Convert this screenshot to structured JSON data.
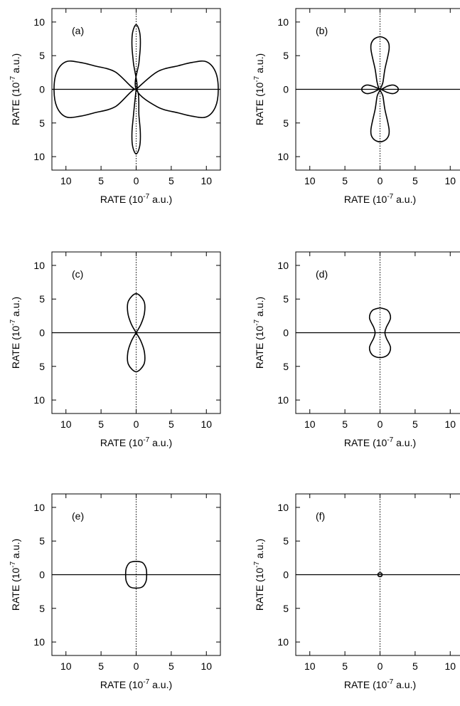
{
  "chart_data": [
    {
      "type": "polar-line",
      "panel_label": "(a)",
      "series": [
        {
          "values": [
            [
              0,
              0
            ],
            [
              3,
              2.6
            ],
            [
              6,
              3.5
            ],
            [
              8,
              4
            ],
            [
              10,
              4.1
            ],
            [
              11.3,
              2.6
            ],
            [
              11.7,
              0
            ],
            [
              11.3,
              -2.6
            ],
            [
              10,
              -4.1
            ],
            [
              8,
              -4
            ],
            [
              6,
              -3.5
            ],
            [
              3,
              -2.6
            ],
            [
              0,
              0
            ],
            [
              0.4,
              4
            ],
            [
              0.6,
              6.5
            ],
            [
              0.5,
              8.5
            ],
            [
              0,
              9.6
            ],
            [
              -0.5,
              8.5
            ],
            [
              -0.6,
              6.5
            ],
            [
              -0.4,
              4
            ],
            [
              0,
              0
            ],
            [
              -3,
              2.6
            ],
            [
              -6,
              3.5
            ],
            [
              -8,
              4
            ],
            [
              -10,
              4.1
            ],
            [
              -11.3,
              2.6
            ],
            [
              -11.7,
              0
            ],
            [
              -11.3,
              -2.6
            ],
            [
              -10,
              -4.1
            ],
            [
              -8,
              -4
            ],
            [
              -6,
              -3.5
            ],
            [
              -3,
              -2.6
            ],
            [
              0,
              0
            ],
            [
              0.4,
              -4
            ],
            [
              0.6,
              -6.5
            ],
            [
              0.5,
              -8.5
            ],
            [
              0,
              -9.6
            ],
            [
              -0.5,
              -8.5
            ],
            [
              -0.6,
              -6.5
            ],
            [
              -0.4,
              -4
            ],
            [
              0,
              0
            ]
          ]
        }
      ],
      "xlabel": "RATE (10",
      "ylabel": "RATE (10",
      "label_exponent": "-7",
      "label_unit": " a.u.)",
      "xticks": [
        "10",
        "5",
        "0",
        "5",
        "10"
      ],
      "yticks": [
        "10",
        "5",
        "0",
        "5",
        "10"
      ],
      "xlim": [
        -12,
        12
      ],
      "ylim": [
        -12,
        12
      ]
    },
    {
      "type": "polar-line",
      "panel_label": "(b)",
      "series": [
        {
          "values": [
            [
              0,
              0
            ],
            [
              0.4,
              1
            ],
            [
              0.7,
              3
            ],
            [
              1.3,
              6
            ],
            [
              1,
              7.3
            ],
            [
              0,
              7.8
            ],
            [
              -1,
              7.3
            ],
            [
              -1.3,
              6
            ],
            [
              -0.7,
              3
            ],
            [
              -0.4,
              1
            ],
            [
              0,
              0
            ],
            [
              1,
              0.45
            ],
            [
              1.8,
              0.65
            ],
            [
              2.4,
              0.4
            ],
            [
              2.6,
              0
            ],
            [
              2.4,
              -0.4
            ],
            [
              1.8,
              -0.65
            ],
            [
              1,
              -0.45
            ],
            [
              0,
              0
            ],
            [
              0.4,
              -1
            ],
            [
              0.7,
              -3
            ],
            [
              1.3,
              -6
            ],
            [
              1,
              -7.3
            ],
            [
              0,
              -7.8
            ],
            [
              -1,
              -7.3
            ],
            [
              -1.3,
              -6
            ],
            [
              -0.7,
              -3
            ],
            [
              -0.4,
              -1
            ],
            [
              0,
              0
            ],
            [
              -1,
              -0.45
            ],
            [
              -1.8,
              -0.65
            ],
            [
              -2.4,
              -0.4
            ],
            [
              -2.6,
              0
            ],
            [
              -2.4,
              0.4
            ],
            [
              -1.8,
              0.65
            ],
            [
              -1,
              0.45
            ],
            [
              0,
              0
            ]
          ]
        }
      ],
      "xlabel": "RATE (10",
      "ylabel": "RATE (10",
      "label_exponent": "-7",
      "label_unit": " a.u.)",
      "xticks": [
        "10",
        "5",
        "0",
        "5",
        "10"
      ],
      "yticks": [
        "10",
        "5",
        "0",
        "5",
        "10"
      ],
      "xlim": [
        -12,
        12
      ],
      "ylim": [
        -12,
        12
      ]
    },
    {
      "type": "polar-line",
      "panel_label": "(c)",
      "series": [
        {
          "values": [
            [
              0,
              0
            ],
            [
              0.7,
              1.3
            ],
            [
              1.2,
              3
            ],
            [
              1.1,
              4.7
            ],
            [
              0,
              5.8
            ],
            [
              -1.1,
              4.7
            ],
            [
              -1.2,
              3
            ],
            [
              -0.7,
              1.3
            ],
            [
              0,
              0
            ],
            [
              0.7,
              -1.3
            ],
            [
              1.2,
              -3
            ],
            [
              1.1,
              -4.7
            ],
            [
              0,
              -5.8
            ],
            [
              -1.1,
              -4.7
            ],
            [
              -1.2,
              -3
            ],
            [
              -0.7,
              -1.3
            ],
            [
              0,
              0
            ]
          ]
        }
      ],
      "xlabel": "RATE (10",
      "ylabel": "RATE (10",
      "label_exponent": "-7",
      "label_unit": " a.u.)",
      "xticks": [
        "10",
        "5",
        "0",
        "5",
        "10"
      ],
      "yticks": [
        "10",
        "5",
        "0",
        "5",
        "10"
      ],
      "xlim": [
        -12,
        12
      ],
      "ylim": [
        -12,
        12
      ]
    },
    {
      "type": "polar-line",
      "panel_label": "(d)",
      "series": [
        {
          "values": [
            [
              0,
              3.7
            ],
            [
              1.1,
              3.3
            ],
            [
              1.5,
              2.2
            ],
            [
              0.9,
              0.8
            ],
            [
              0.7,
              0
            ],
            [
              0.9,
              -0.8
            ],
            [
              1.5,
              -2.2
            ],
            [
              1.1,
              -3.3
            ],
            [
              0,
              -3.7
            ],
            [
              -1.1,
              -3.3
            ],
            [
              -1.5,
              -2.2
            ],
            [
              -0.9,
              -0.8
            ],
            [
              -0.7,
              0
            ],
            [
              -0.9,
              0.8
            ],
            [
              -1.5,
              2.2
            ],
            [
              -1.1,
              3.3
            ],
            [
              0,
              3.7
            ]
          ]
        }
      ],
      "xlabel": "RATE (10",
      "ylabel": "RATE (10",
      "label_exponent": "-7",
      "label_unit": " a.u.)",
      "xticks": [
        "10",
        "5",
        "0",
        "5",
        "10"
      ],
      "yticks": [
        "10",
        "5",
        "0",
        "5",
        "10"
      ],
      "xlim": [
        -12,
        12
      ],
      "ylim": [
        -12,
        12
      ]
    },
    {
      "type": "polar-line",
      "panel_label": "(e)",
      "series": [
        {
          "values": [
            [
              0,
              2
            ],
            [
              0.9,
              1.8
            ],
            [
              1.4,
              1
            ],
            [
              1.5,
              0
            ],
            [
              1.4,
              -1
            ],
            [
              0.9,
              -1.8
            ],
            [
              0,
              -2
            ],
            [
              -0.9,
              -1.8
            ],
            [
              -1.4,
              -1
            ],
            [
              -1.5,
              0
            ],
            [
              -1.4,
              1
            ],
            [
              -0.9,
              1.8
            ],
            [
              0,
              2
            ]
          ]
        }
      ],
      "xlabel": "RATE (10",
      "ylabel": "RATE (10",
      "label_exponent": "-7",
      "label_unit": " a.u.)",
      "xticks": [
        "10",
        "5",
        "0",
        "5",
        "10"
      ],
      "yticks": [
        "10",
        "5",
        "0",
        "5",
        "10"
      ],
      "xlim": [
        -12,
        12
      ],
      "ylim": [
        -12,
        12
      ]
    },
    {
      "type": "polar-line",
      "panel_label": "(f)",
      "series": [
        {
          "values": [
            [
              0,
              0.3
            ],
            [
              0.21,
              0.21
            ],
            [
              0.3,
              0
            ],
            [
              0.21,
              -0.21
            ],
            [
              0,
              -0.3
            ],
            [
              -0.21,
              -0.21
            ],
            [
              -0.3,
              0
            ],
            [
              -0.21,
              0.21
            ],
            [
              0,
              0.3
            ]
          ]
        }
      ],
      "xlabel": "RATE (10",
      "ylabel": "RATE (10",
      "label_exponent": "-7",
      "label_unit": " a.u.)",
      "xticks": [
        "10",
        "5",
        "0",
        "5",
        "10"
      ],
      "yticks": [
        "10",
        "5",
        "0",
        "5",
        "10"
      ],
      "xlim": [
        -12,
        12
      ],
      "ylim": [
        -12,
        12
      ]
    }
  ]
}
